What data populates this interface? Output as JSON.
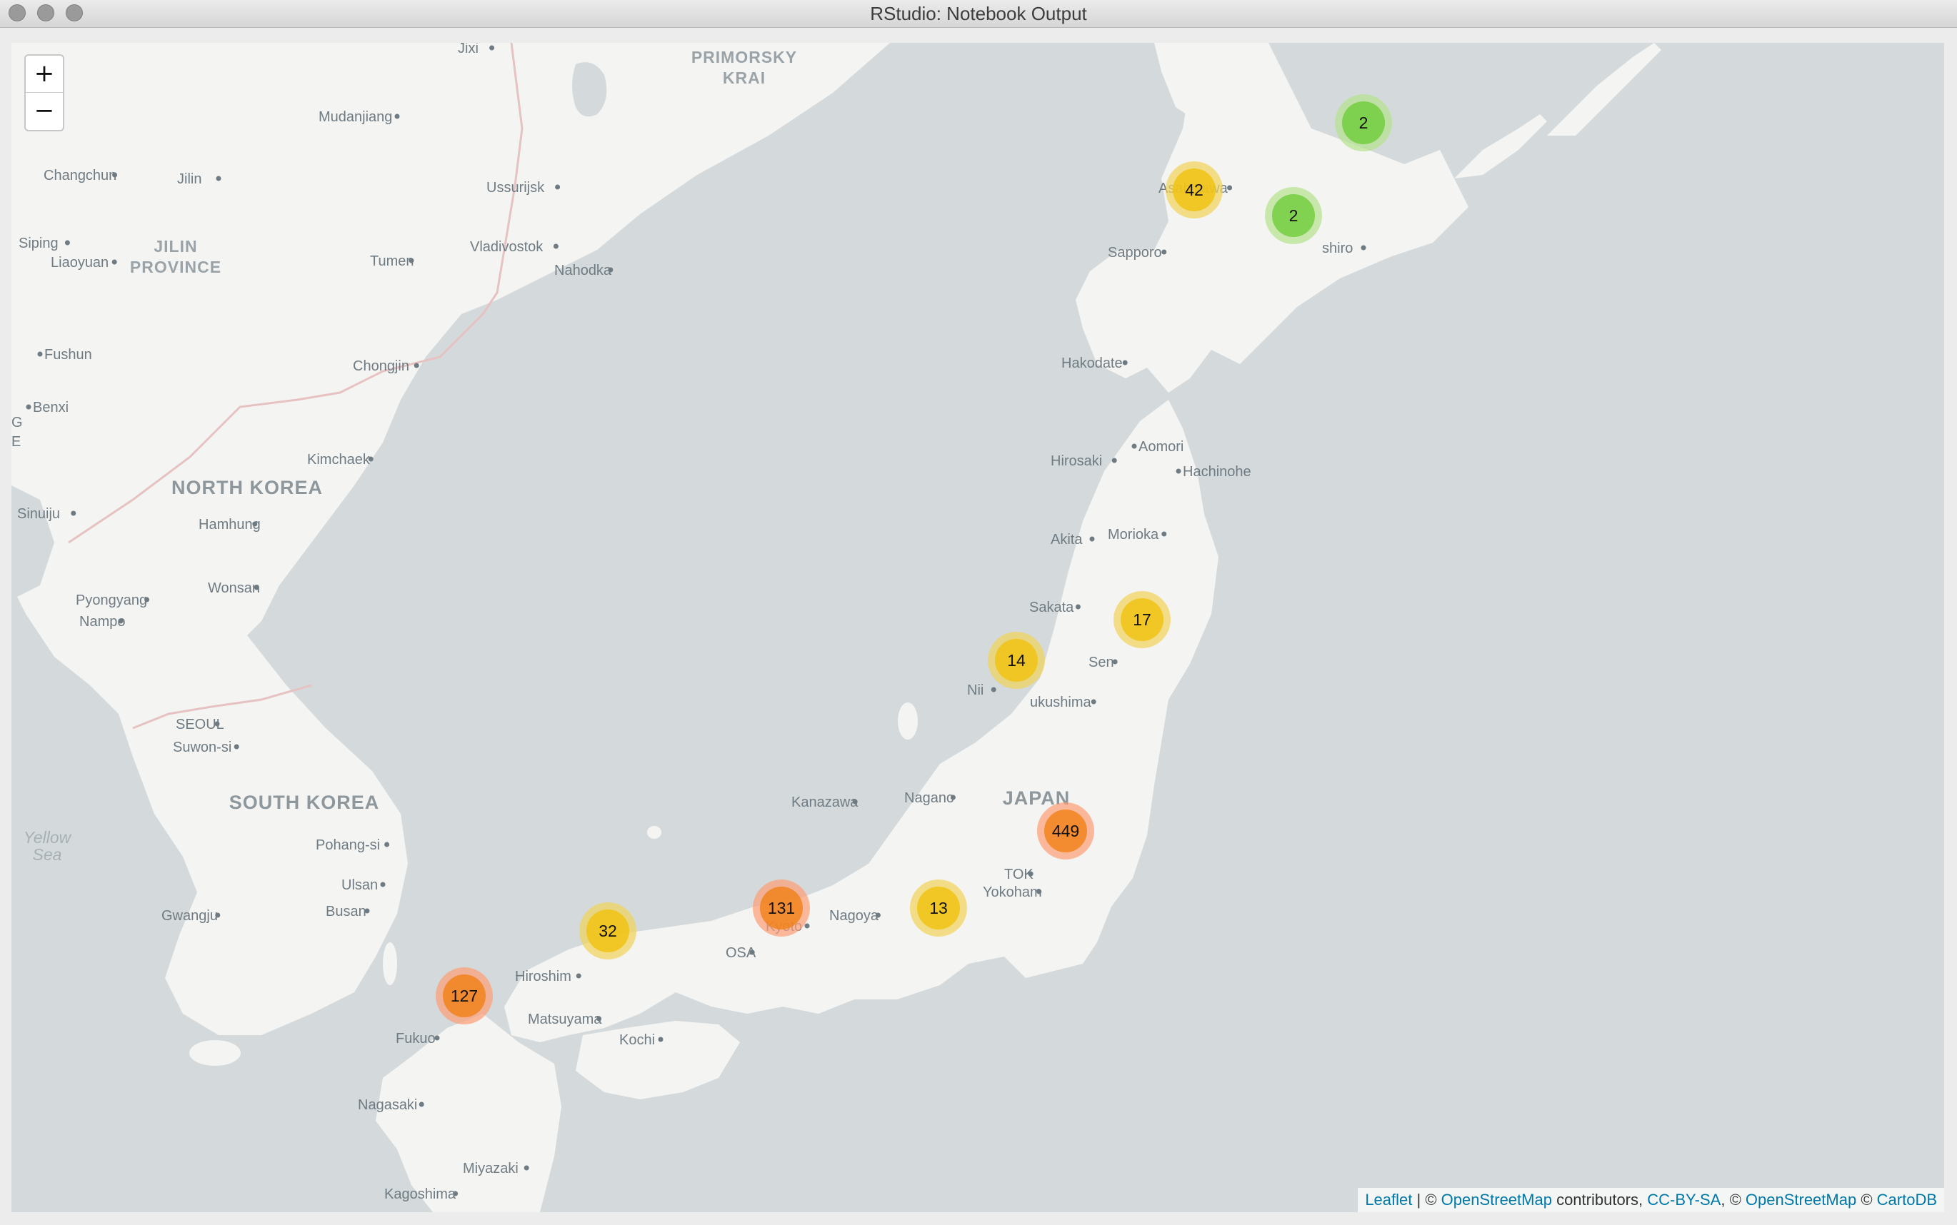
{
  "window": {
    "title": "RStudio: Notebook Output",
    "buttons": [
      "close",
      "minimize",
      "zoom"
    ]
  },
  "map": {
    "zoom_in_label": "+",
    "zoom_out_label": "−",
    "land_color": "#f4f4f3",
    "water_color": "#d4dadc",
    "border_color": "#e6c2c2",
    "labels": {
      "countries": [
        "NORTH KOREA",
        "SOUTH KOREA",
        "JAPAN"
      ],
      "regions": [
        "PRIMORSKY",
        "KRAI",
        "JILIN",
        "PROVINCE"
      ],
      "seas": [
        "Yellow",
        "Sea"
      ],
      "edge_fragments": [
        "G",
        "E"
      ],
      "cities": [
        "Jixi",
        "Mudanjiang",
        "Changchun",
        "Jilin",
        "Ussurijsk",
        "Siping",
        "Liaoyuan",
        "Tumen",
        "Vladivostok",
        "Nahodka",
        "Fushun",
        "Chongjin",
        "Benxi",
        "Kimchaek",
        "Sinuiju",
        "Hamhung",
        "Wonsan",
        "Pyongyang",
        "Nampo",
        "SEOUL",
        "Suwon-si",
        "Pohang-si",
        "Ulsan",
        "Busan",
        "Gwangju",
        "Asahikawa",
        "Sapporo",
        "shiro",
        "Hakodate",
        "Aomori",
        "Hirosaki",
        "Hachinohe",
        "Akita",
        "Morioka",
        "Sakata",
        "Sen",
        "Nii",
        "ukushima",
        "Kanazawa",
        "Nagano",
        "TOK",
        "Yokoham",
        "Nagoya",
        "Kyoto",
        "OSA",
        "Hiroshim",
        "Matsuyama",
        "Kochi",
        "Fukuo",
        "Nagasaki",
        "Miyazaki",
        "Kagoshima"
      ]
    },
    "clusters": [
      {
        "count": "2",
        "tier": "small"
      },
      {
        "count": "42",
        "tier": "medium"
      },
      {
        "count": "2",
        "tier": "small"
      },
      {
        "count": "17",
        "tier": "medium"
      },
      {
        "count": "14",
        "tier": "medium"
      },
      {
        "count": "449",
        "tier": "large"
      },
      {
        "count": "131",
        "tier": "large"
      },
      {
        "count": "13",
        "tier": "medium"
      },
      {
        "count": "32",
        "tier": "medium"
      },
      {
        "count": "127",
        "tier": "large"
      }
    ],
    "cluster_colors": {
      "small": {
        "halo": "#b5e28c",
        "core": "#6ecc39"
      },
      "medium": {
        "halo": "#f1d357",
        "core": "#f0c20c"
      },
      "large": {
        "halo": "#fd9c73",
        "core": "#f18017"
      }
    },
    "attribution": {
      "leaflet": "Leaflet",
      "sep1": " | © ",
      "osm1": "OpenStreetMap",
      "contrib": " contributors, ",
      "ccbysa": "CC-BY-SA",
      "sep2": ", © ",
      "osm2": "OpenStreetMap",
      "sep3": " © ",
      "cartodb": "CartoDB"
    }
  }
}
